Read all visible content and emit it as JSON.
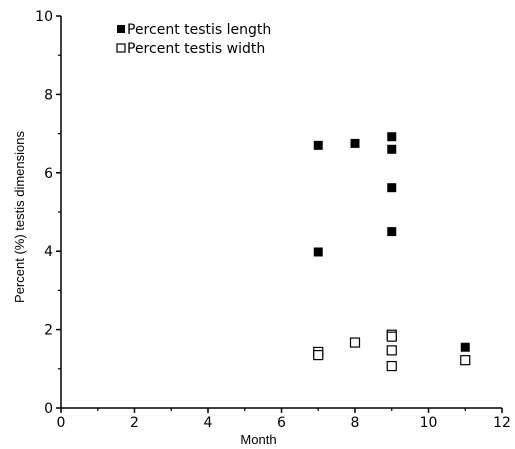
{
  "chart_data": {
    "type": "scatter",
    "xlabel": "Month",
    "ylabel": "Percent (%) testis dimensions",
    "xlim": [
      0,
      12
    ],
    "ylim": [
      0,
      10
    ],
    "xticks": [
      "0",
      "2",
      "4",
      "6",
      "8",
      "10",
      "12"
    ],
    "yticks": [
      "0",
      "2",
      "4",
      "6",
      "8",
      "10"
    ],
    "grid": false,
    "legend_position": "top-left",
    "series": [
      {
        "name": "Percent testis length",
        "marker": "filled-square",
        "color": "#000000",
        "points": [
          {
            "x": 7,
            "y": 6.7
          },
          {
            "x": 7,
            "y": 3.98
          },
          {
            "x": 8,
            "y": 6.75
          },
          {
            "x": 9,
            "y": 6.92
          },
          {
            "x": 9,
            "y": 6.6
          },
          {
            "x": 9,
            "y": 5.62
          },
          {
            "x": 9,
            "y": 4.5
          },
          {
            "x": 11,
            "y": 1.55
          }
        ]
      },
      {
        "name": "Percent testis width",
        "marker": "open-square",
        "color": "#000000",
        "points": [
          {
            "x": 7,
            "y": 1.43
          },
          {
            "x": 7,
            "y": 1.35
          },
          {
            "x": 8,
            "y": 1.67
          },
          {
            "x": 9,
            "y": 1.87
          },
          {
            "x": 9,
            "y": 1.82
          },
          {
            "x": 9,
            "y": 1.47
          },
          {
            "x": 9,
            "y": 1.07
          },
          {
            "x": 11,
            "y": 1.22
          }
        ]
      }
    ]
  }
}
